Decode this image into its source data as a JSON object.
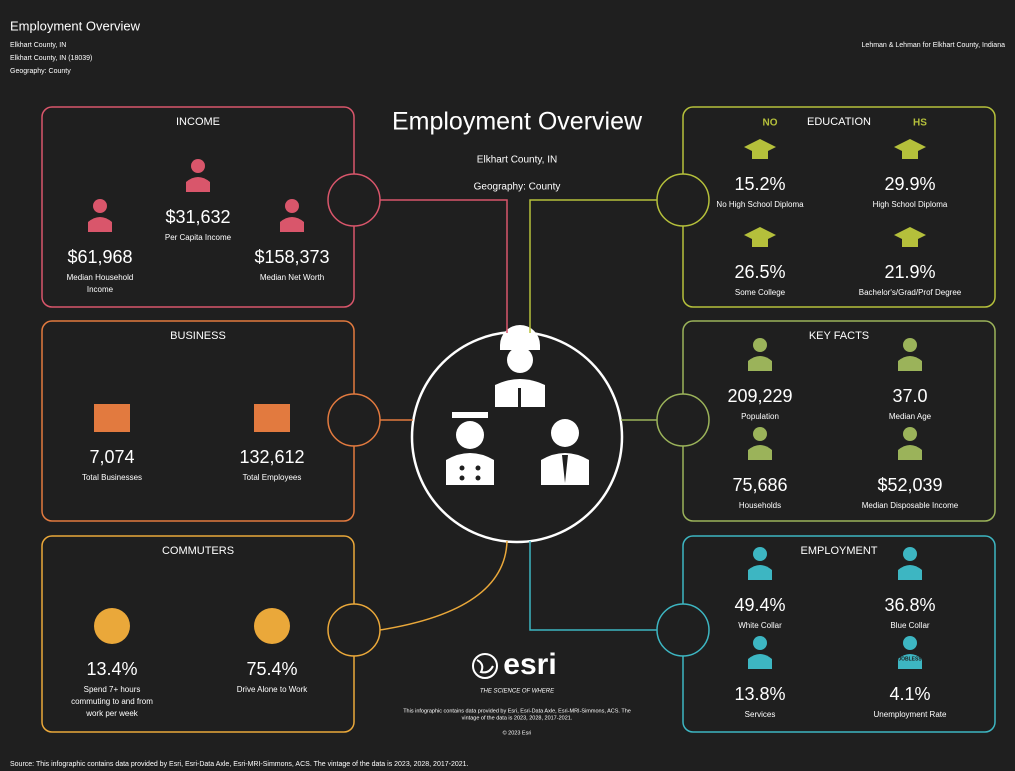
{
  "header": {
    "title": "Employment Overview",
    "lines": [
      "Elkhart County, IN",
      "Elkhart County, IN (18039)",
      "Geography: County"
    ],
    "credit": "Lehman & Lehman for Elkhart County, Indiana"
  },
  "center": {
    "title": "Employment Overview",
    "location": "Elkhart County, IN",
    "geography": "Geography: County"
  },
  "panels": [
    {
      "title": "INCOME",
      "color": "#d9566b",
      "items": [
        {
          "value": "$61,968",
          "label": [
            "Median Household",
            "Income"
          ]
        },
        {
          "value": "$31,632",
          "label": [
            "Per Capita Income"
          ]
        },
        {
          "value": "$158,373",
          "label": [
            "Median Net Worth"
          ]
        }
      ]
    },
    {
      "title": "BUSINESS",
      "color": "#e27a3f",
      "items": [
        {
          "value": "7,074",
          "label": [
            "Total Businesses"
          ]
        },
        {
          "value": "132,612",
          "label": [
            "Total Employees"
          ]
        }
      ]
    },
    {
      "title": "COMMUTERS",
      "color": "#eaa83a",
      "items": [
        {
          "value": "13.4%",
          "label": [
            "Spend 7+ hours",
            "commuting to and from",
            "work per week"
          ]
        },
        {
          "value": "75.4%",
          "label": [
            "Drive Alone to Work"
          ]
        }
      ]
    },
    {
      "title": "EDUCATION",
      "color": "#b5c03b",
      "items": [
        {
          "value": "15.2%",
          "label": [
            "No High School Diploma"
          ],
          "badge": "NO"
        },
        {
          "value": "29.9%",
          "label": [
            "High School Diploma"
          ],
          "badge": "HS"
        },
        {
          "value": "26.5%",
          "label": [
            "Some College"
          ]
        },
        {
          "value": "21.9%",
          "label": [
            "Bachelor's/Grad/Prof Degree"
          ]
        }
      ]
    },
    {
      "title": "KEY FACTS",
      "color": "#9bb35a",
      "items": [
        {
          "value": "209,229",
          "label": [
            "Population"
          ]
        },
        {
          "value": "37.0",
          "label": [
            "Median Age"
          ]
        },
        {
          "value": "75,686",
          "label": [
            "Households"
          ]
        },
        {
          "value": "$52,039",
          "label": [
            "Median Disposable Income"
          ]
        }
      ]
    },
    {
      "title": "EMPLOYMENT",
      "color": "#3db6c2",
      "items": [
        {
          "value": "49.4%",
          "label": [
            "White Collar"
          ]
        },
        {
          "value": "36.8%",
          "label": [
            "Blue Collar"
          ]
        },
        {
          "value": "13.8%",
          "label": [
            "Services"
          ]
        },
        {
          "value": "4.1%",
          "label": [
            "Unemployment Rate"
          ],
          "badge": "JOBLESS"
        }
      ]
    }
  ],
  "esri": {
    "logo": "esri",
    "tagline": "THE SCIENCE OF WHERE",
    "disclaimer": [
      "This infographic contains data provided by Esri, Esri-Data Axle, Esri-MRI-Simmons, ACS. The",
      "vintage of the data is 2023, 2028, 2017-2021."
    ],
    "copyright": "© 2023 Esri"
  },
  "footer": "Source: This infographic contains data provided by Esri, Esri-Data Axle, Esri-MRI-Simmons, ACS. The vintage of the data is 2023, 2028, 2017-2021."
}
